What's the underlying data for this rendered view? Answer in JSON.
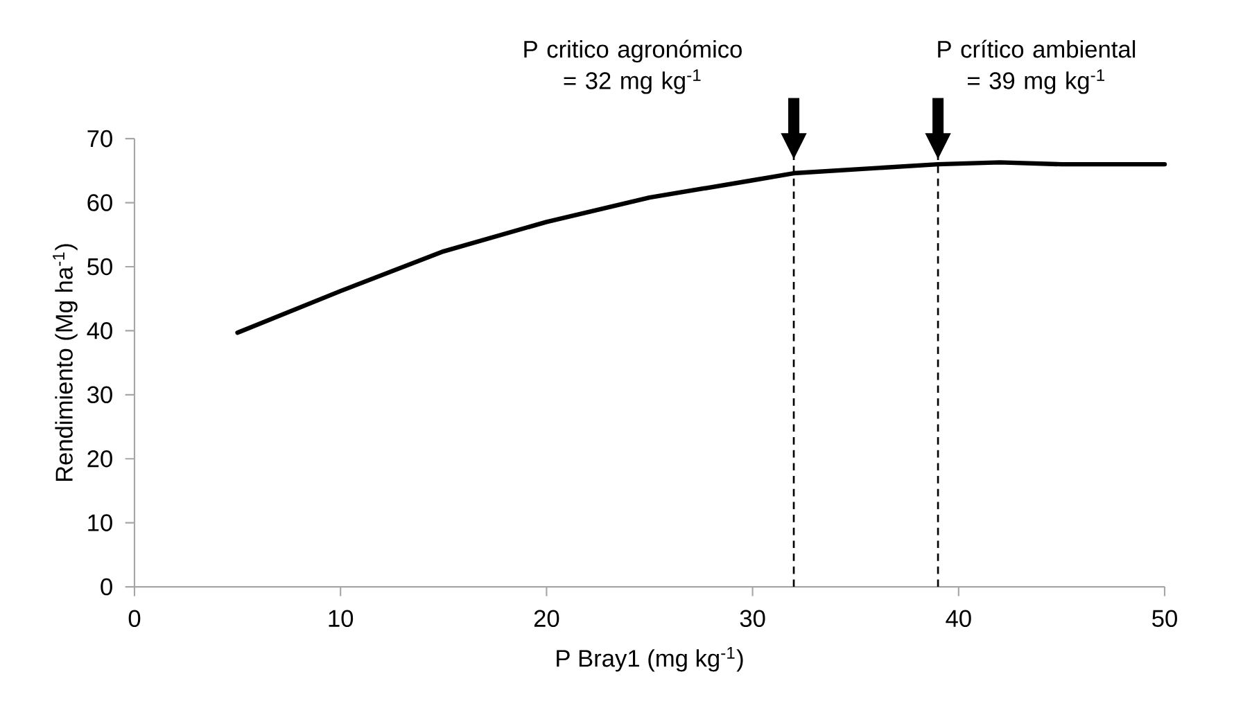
{
  "chart_data": {
    "type": "line",
    "x": [
      5,
      10,
      15,
      20,
      25,
      30,
      32,
      39,
      42,
      45,
      50
    ],
    "series": [
      {
        "color": "#000000",
        "values": [
          39.7,
          46.2,
          52.4,
          57.0,
          60.8,
          63.5,
          64.6,
          66.0,
          66.3,
          66.0,
          66.0
        ]
      }
    ],
    "xlabel": "P Bray1 (mg kg$^{-1}$)",
    "ylabel": "Rendimiento (Mg ha$^{-1}$)",
    "xlim": [
      0,
      50
    ],
    "ylim": [
      0,
      70
    ],
    "xticks": [
      0,
      10,
      20,
      30,
      40,
      50
    ],
    "yticks": [
      0,
      10,
      20,
      30,
      40,
      50,
      60,
      70
    ],
    "ref_lines": [
      {
        "axis": "x",
        "value": 32,
        "label": "P critico agronómico = 32 mg kg$^{-1}$",
        "line_style": "dashed",
        "color": "#000000"
      },
      {
        "axis": "x",
        "value": 39,
        "label": "P crítico ambiental = 39 mg kg$^{-1}$",
        "line_style": "dashed",
        "color": "#000000"
      }
    ],
    "grid": false,
    "legend": false
  }
}
